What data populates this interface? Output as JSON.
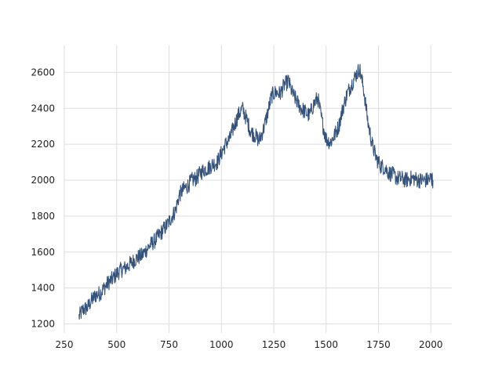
{
  "chart_data": {
    "type": "line",
    "title": "",
    "xlabel": "",
    "ylabel": "",
    "xlim": [
      250,
      2100
    ],
    "ylim": [
      1150,
      2750
    ],
    "x_ticks": [
      250,
      500,
      750,
      1000,
      1250,
      1500,
      1750,
      2000
    ],
    "y_ticks": [
      1200,
      1400,
      1600,
      1800,
      2000,
      2200,
      2400,
      2600
    ],
    "x_tick_labels": [
      "250",
      "500",
      "750",
      "1000",
      "1250",
      "1500",
      "1750",
      "2000"
    ],
    "y_tick_labels": [
      "1200",
      "1400",
      "1600",
      "1800",
      "2000",
      "2200",
      "2400",
      "2600"
    ],
    "grid": true,
    "legend": "none",
    "line_color": "#34527a",
    "grid_color": "#dddddd",
    "series": [
      {
        "x": [
          320,
          340,
          360,
          380,
          400,
          420,
          440,
          460,
          480,
          500,
          520,
          540,
          560,
          580,
          600,
          620,
          640,
          660,
          680,
          700,
          720,
          740,
          760,
          780,
          800,
          820,
          840,
          860,
          880,
          900,
          920,
          940,
          960,
          980,
          1000,
          1020,
          1040,
          1060,
          1080,
          1100,
          1120,
          1140,
          1160,
          1180,
          1200,
          1220,
          1240,
          1260,
          1280,
          1300,
          1320,
          1340,
          1360,
          1380,
          1400,
          1420,
          1440,
          1460,
          1480,
          1500,
          1520,
          1540,
          1560,
          1580,
          1600,
          1620,
          1640,
          1660,
          1680,
          1700,
          1720,
          1740,
          1760,
          1780,
          1800,
          1820,
          1840,
          1860,
          1880,
          1900,
          1920,
          1940,
          1960,
          1980,
          2000,
          2010
        ],
        "y": [
          1240,
          1280,
          1290,
          1330,
          1360,
          1370,
          1400,
          1430,
          1450,
          1480,
          1500,
          1510,
          1530,
          1550,
          1570,
          1580,
          1610,
          1640,
          1660,
          1690,
          1720,
          1750,
          1790,
          1830,
          1920,
          1950,
          1970,
          2000,
          2010,
          2040,
          2060,
          2070,
          2090,
          2100,
          2150,
          2200,
          2230,
          2300,
          2360,
          2400,
          2340,
          2270,
          2250,
          2220,
          2280,
          2370,
          2470,
          2490,
          2480,
          2530,
          2550,
          2480,
          2440,
          2400,
          2380,
          2360,
          2420,
          2460,
          2330,
          2230,
          2210,
          2250,
          2300,
          2400,
          2480,
          2530,
          2580,
          2620,
          2500,
          2320,
          2200,
          2120,
          2080,
          2070,
          2040,
          2030,
          2010,
          2010,
          2000,
          2010,
          2010,
          2000,
          2000,
          2000,
          2010,
          2000
        ]
      }
    ]
  }
}
